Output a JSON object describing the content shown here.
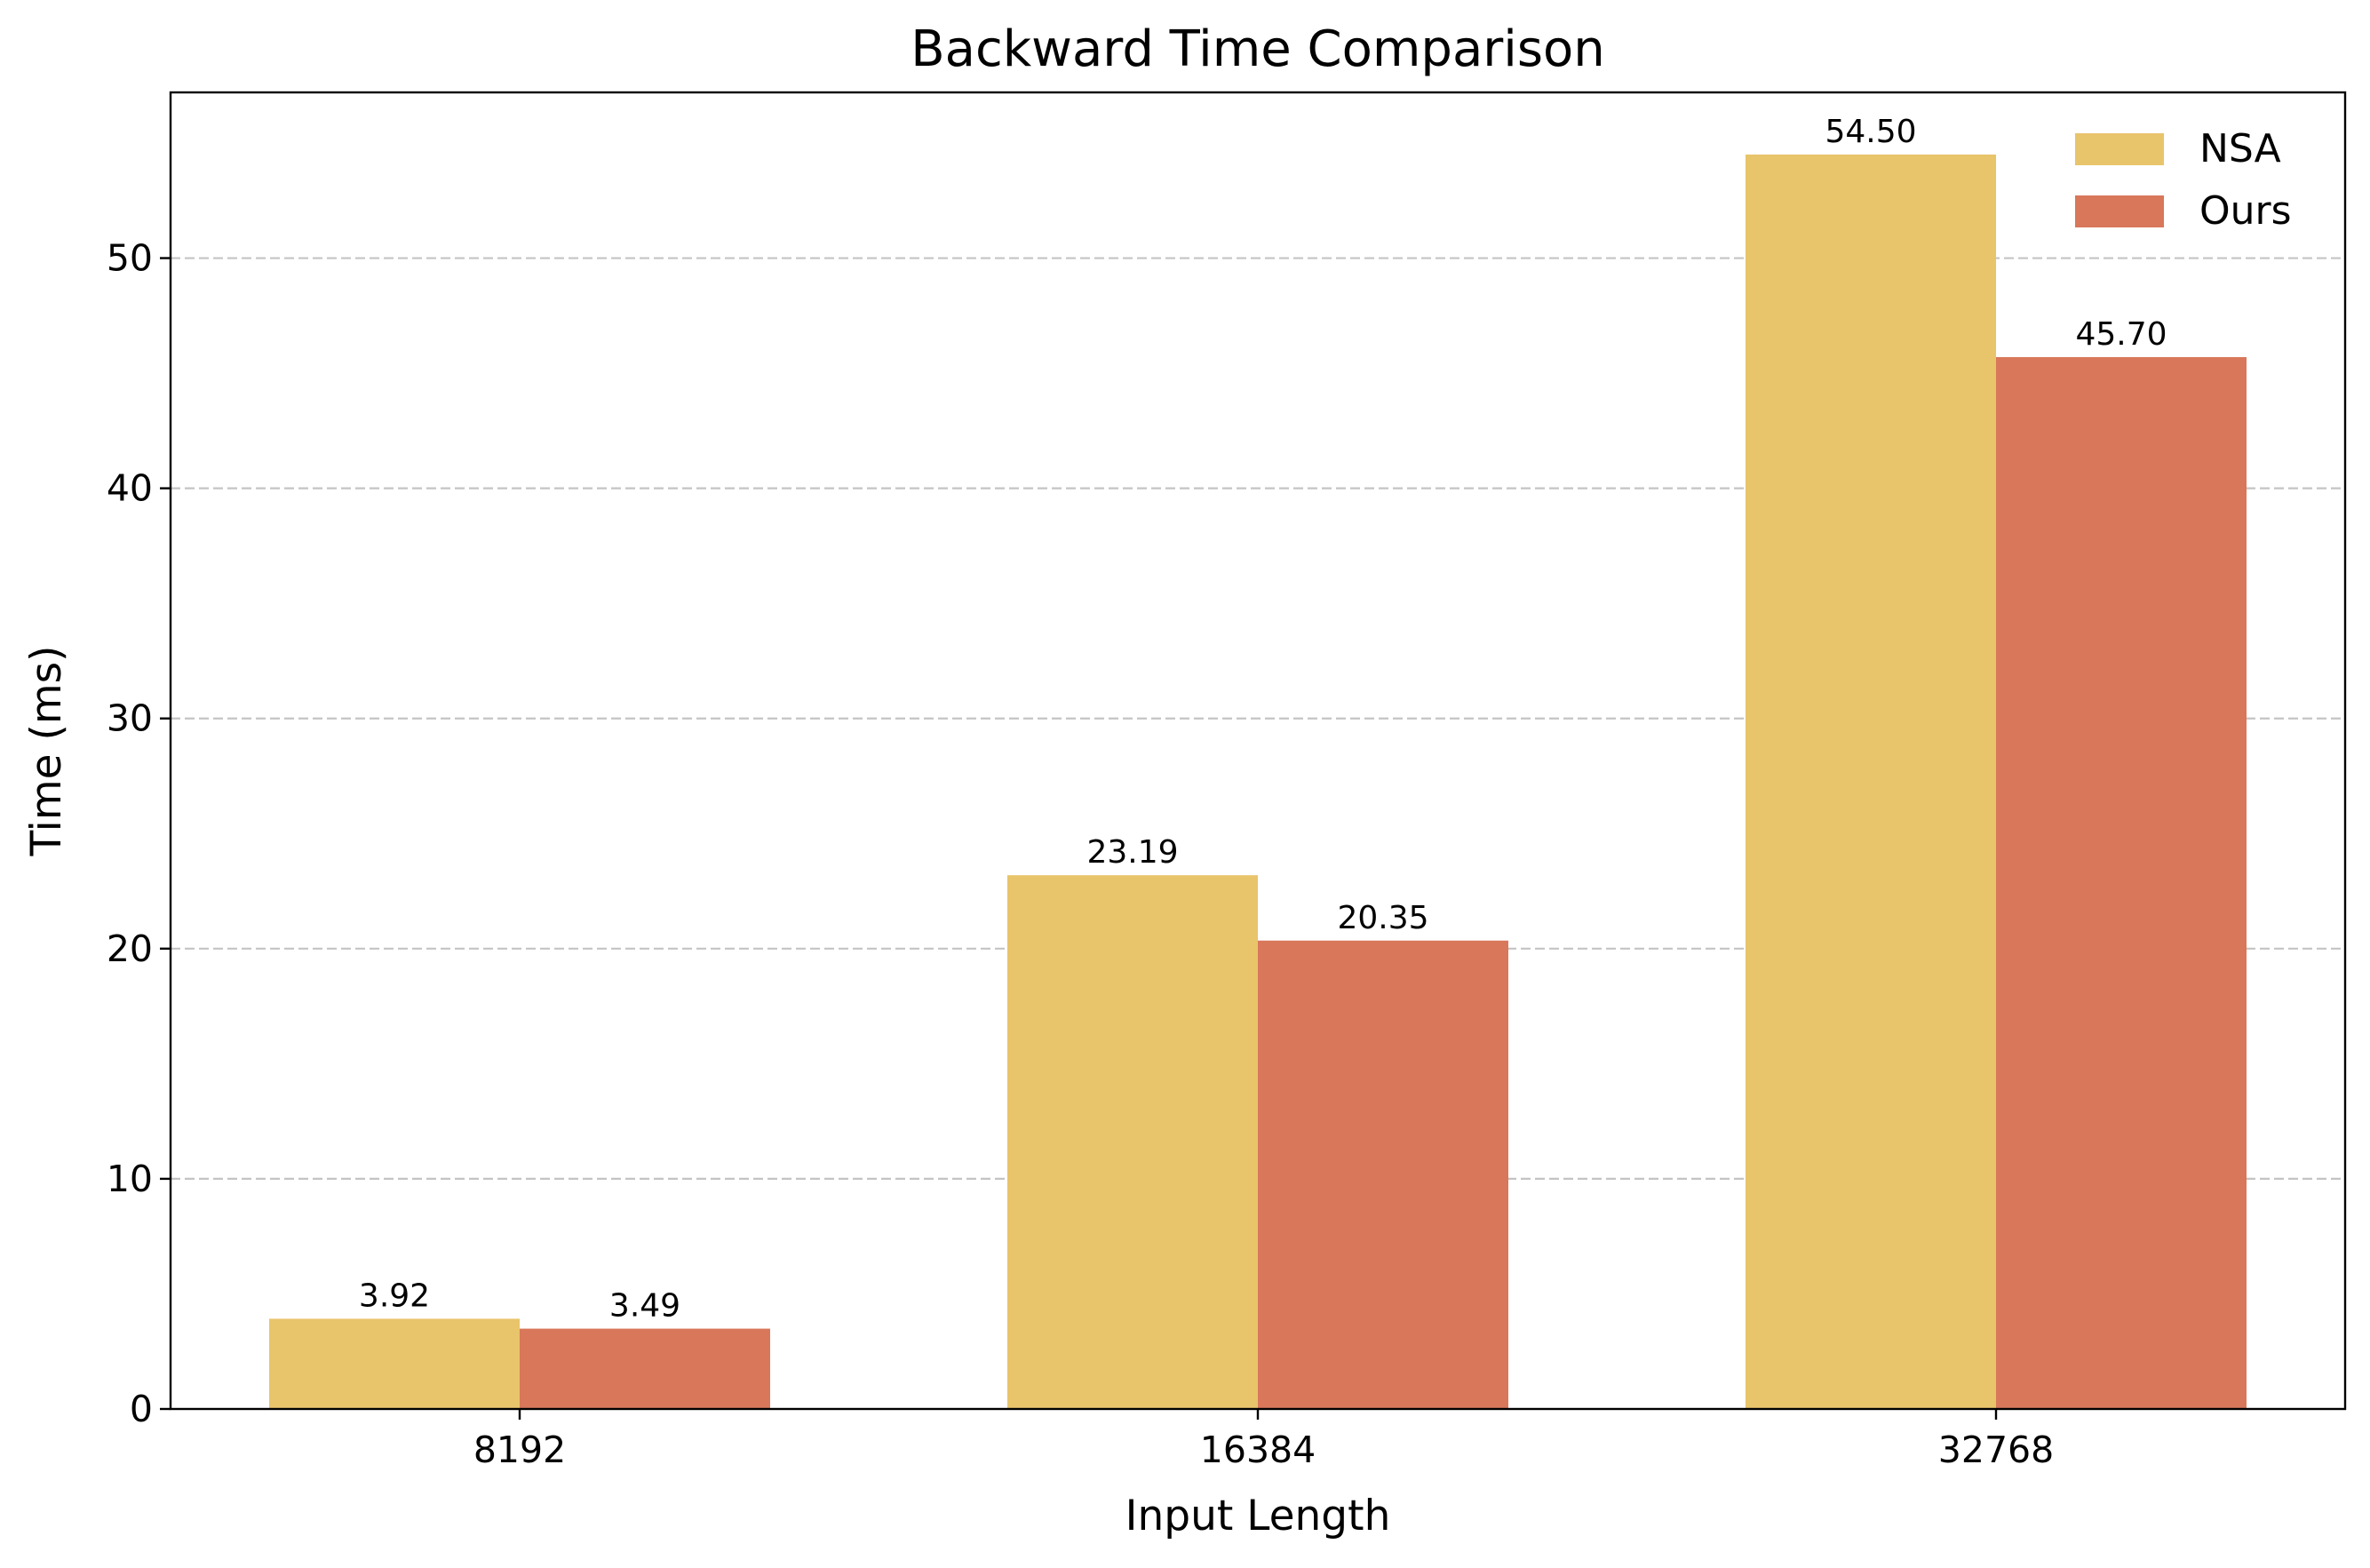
{
  "chart_data": {
    "type": "bar",
    "title": "Backward Time Comparison",
    "xlabel": "Input Length",
    "ylabel": "Time (ms)",
    "categories": [
      "8192",
      "16384",
      "32768"
    ],
    "series": [
      {
        "name": "NSA",
        "values": [
          3.92,
          23.19,
          54.5
        ],
        "labels": [
          "3.92",
          "23.19",
          "54.50"
        ],
        "color": "#E8C46B"
      },
      {
        "name": "Ours",
        "values": [
          3.49,
          20.35,
          45.7
        ],
        "labels": [
          "3.49",
          "20.35",
          "45.70"
        ],
        "color": "#D8775A"
      }
    ],
    "ylim": [
      0,
      57.2
    ],
    "yticks": [
      0,
      10,
      20,
      30,
      40,
      50
    ],
    "ytick_labels": [
      "0",
      "10",
      "20",
      "30",
      "40",
      "50"
    ],
    "grid": "y-axis dashed",
    "legend": "top-right"
  }
}
